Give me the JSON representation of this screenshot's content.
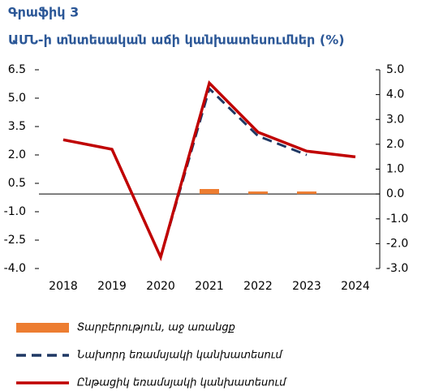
{
  "chart_data": {
    "type": "line",
    "title": "Գրաֆիկ 3",
    "subtitle": "ԱՄՆ-ի տնտեսական աճի կանխատեսումներ (%)",
    "categories": [
      "2018",
      "2019",
      "2020",
      "2021",
      "2022",
      "2023",
      "2024"
    ],
    "ylim": [
      -4.0,
      6.5
    ],
    "yticks": [
      {
        "value": -4.0,
        "label": "-4.0"
      },
      {
        "value": -2.5,
        "label": "-2.5"
      },
      {
        "value": -1.0,
        "label": "-1.0"
      },
      {
        "value": 0.5,
        "label": "0.5"
      },
      {
        "value": 2.0,
        "label": "2.0"
      },
      {
        "value": 3.5,
        "label": "3.5"
      },
      {
        "value": 5.0,
        "label": "5.0"
      },
      {
        "value": 6.5,
        "label": "6.5"
      }
    ],
    "y2lim": [
      -3.0,
      5.0
    ],
    "y2ticks": [
      {
        "value": -3.0,
        "label": "-3.0"
      },
      {
        "value": -2.0,
        "label": "-2.0"
      },
      {
        "value": -1.0,
        "label": "-1.0"
      },
      {
        "value": 0.0,
        "label": "0.0"
      },
      {
        "value": 1.0,
        "label": "1.0"
      },
      {
        "value": 2.0,
        "label": "2.0"
      },
      {
        "value": 3.0,
        "label": "3.0"
      },
      {
        "value": 4.0,
        "label": "4.0"
      },
      {
        "value": 5.0,
        "label": "5.0"
      }
    ],
    "series": [
      {
        "name": "Տարբերություն, աջ առանցք",
        "type": "bar",
        "axis": "y2",
        "color": "#ed7d31",
        "values": [
          null,
          null,
          null,
          0.2,
          0.1,
          0.1,
          null
        ]
      },
      {
        "name": "Նախորդ եռամսյակի կանխատեսում",
        "type": "line",
        "dashed": true,
        "color": "#1f3864",
        "values": [
          2.8,
          2.3,
          -3.4,
          5.5,
          3.0,
          2.0,
          null
        ]
      },
      {
        "name": "Ընթացիկ եռամսյակի կանխատեսում",
        "type": "line",
        "color": "#c00000",
        "values": [
          2.8,
          2.3,
          -3.4,
          5.8,
          3.2,
          2.2,
          1.9
        ]
      }
    ]
  }
}
